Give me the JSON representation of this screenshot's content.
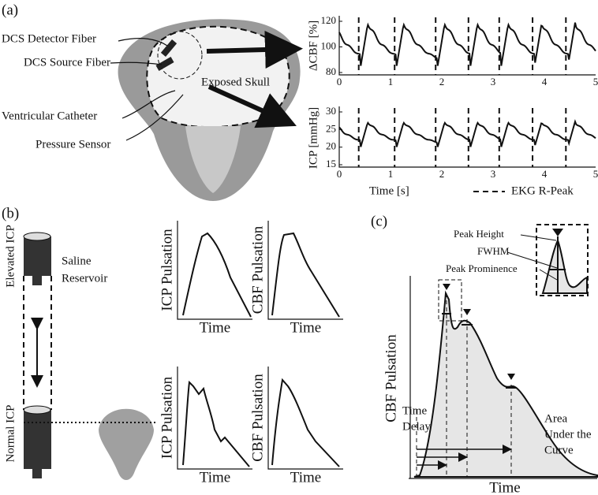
{
  "panels": {
    "a": {
      "label": "(a)",
      "labels": [
        "DCS Detector Fiber",
        "DCS Source Fiber",
        "Exposed Skull",
        "Ventricular Catheter",
        "Pressure Sensor"
      ],
      "cbf": {
        "ylabel": "ΔCBF [%]",
        "yticks": [
          "80",
          "100",
          "120"
        ],
        "xticks": [
          "0",
          "1",
          "2",
          "3",
          "4",
          "5"
        ]
      },
      "icp": {
        "ylabel": "ICP [mmHg]",
        "yticks": [
          "15",
          "20",
          "25",
          "30"
        ],
        "xticks": [
          "0",
          "1",
          "2",
          "3",
          "4",
          "5"
        ]
      },
      "xlabel": "Time [s]",
      "legend": "EKG R-Peak"
    },
    "b": {
      "label": "(b)",
      "elevated": "Elevated ICP",
      "normal": "Normal ICP",
      "reservoir": [
        "Saline",
        "Reservoir"
      ],
      "plots": [
        {
          "ylabel": "ICP Pulsation",
          "xlabel": "Time"
        },
        {
          "ylabel": "CBF Pulsation",
          "xlabel": "Time"
        },
        {
          "ylabel": "ICP Pulsation",
          "xlabel": "Time"
        },
        {
          "ylabel": "CBF Pulsation",
          "xlabel": "Time"
        }
      ]
    },
    "c": {
      "label": "(c)",
      "peak_height": "Peak Height",
      "fwhm": "FWHM",
      "peak_prominence": "Peak Prominence",
      "time_delay": [
        "Time",
        "Delay"
      ],
      "auc": [
        "Area",
        "Under the",
        "Curve"
      ],
      "ylabel": "CBF Pulsation",
      "xlabel": "Time"
    }
  }
}
